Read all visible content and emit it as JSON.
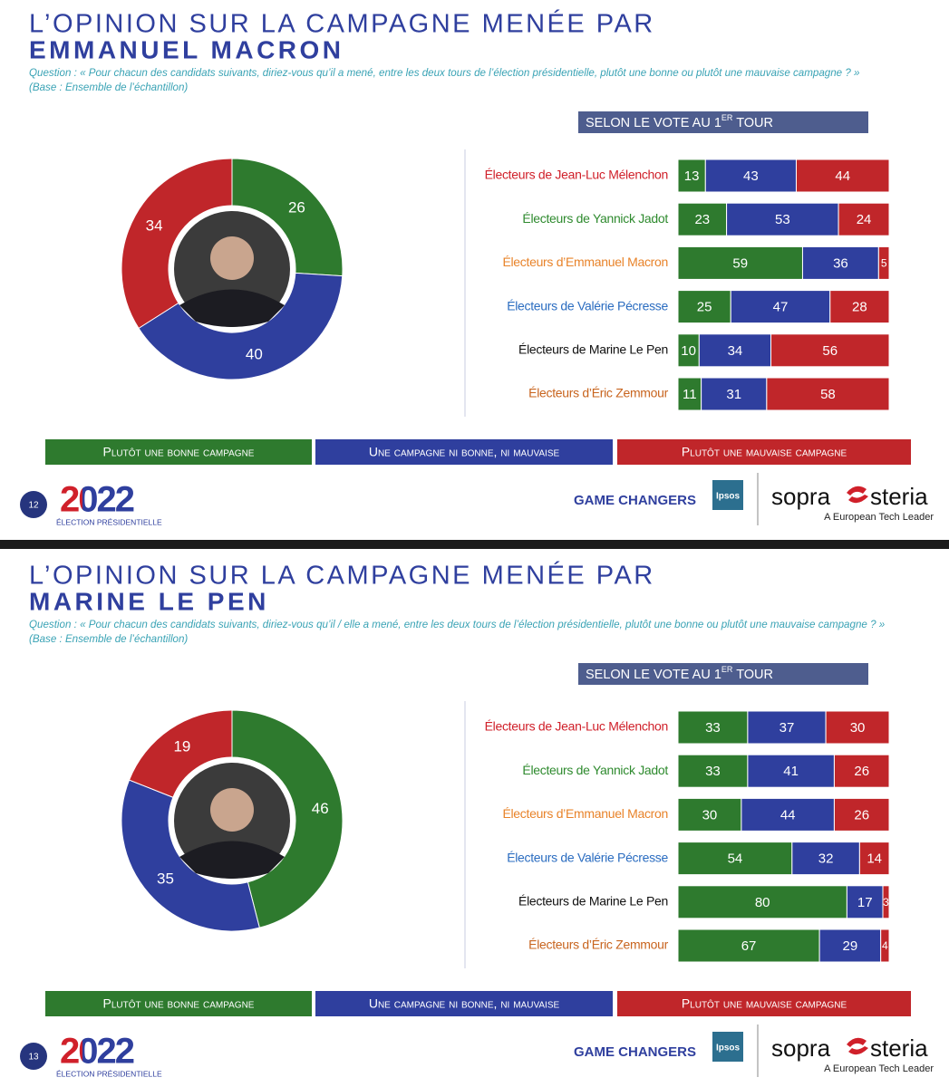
{
  "slides": [
    {
      "title_line1": "L’OPINION SUR LA CAMPAGNE MENÉE PAR",
      "title_line2": "EMMANUEL MACRON",
      "question": "Question : « Pour chacun des candidats suivants, diriez-vous qu’il a mené, entre les deux tours de l’élection présidentielle, plutôt une bonne ou plutôt une mauvaise campagne ? »",
      "base": "(Base : Ensemble de l’échantillon)",
      "page_number": "12",
      "logo_year": "2022",
      "logo_caption": "ÉLECTION PRÉSIDENTIELLE",
      "game_changers": "GAME CHANGERS",
      "ipsos": "Ipsos",
      "sopra": "sopra",
      "steria": "steria",
      "tagline": "A European Tech Leader"
    },
    {
      "title_line1": "L’OPINION SUR LA CAMPAGNE MENÉE PAR",
      "title_line2": "MARINE LE PEN",
      "question": "Question : « Pour chacun des candidats suivants, diriez-vous qu’il / elle a mené, entre les deux tours de l’élection présidentielle, plutôt une bonne ou plutôt une mauvaise campagne ? »",
      "base": "(Base : Ensemble de l’échantillon)",
      "page_number": "13",
      "logo_year": "2022",
      "logo_caption": "ÉLECTION PRÉSIDENTIELLE",
      "game_changers": "GAME CHANGERS",
      "ipsos": "Ipsos",
      "sopra": "sopra",
      "steria": "steria",
      "tagline": "A European Tech Leader"
    }
  ],
  "chart_data": [
    {
      "type": "donut",
      "values": [
        26,
        40,
        34
      ],
      "colors": [
        "#2e7a2e",
        "#2f3f9e",
        "#c0262a"
      ]
    },
    {
      "type": "stacked-bar-h",
      "header_text": "SELON LE VOTE AU 1",
      "header_sup": "ER",
      "header_end": " TOUR",
      "categories": [
        "Électeurs de Jean-Luc Mélenchon",
        "Électeurs de Yannick Jadot",
        "Électeurs d’Emmanuel Macron",
        "Électeurs de Valérie Pécresse",
        "Électeurs de Marine Le Pen",
        "Électeurs d’Éric Zemmour"
      ],
      "category_colors": [
        "#d0202a",
        "#2e8a2e",
        "#e8832a",
        "#2a6cc0",
        "#111111",
        "#c8641e"
      ],
      "xlim": [
        0,
        100
      ],
      "series": [
        {
          "name": "Plutôt une bonne campagne",
          "color": "#2e7a2e",
          "values": [
            13,
            23,
            59,
            25,
            10,
            11
          ]
        },
        {
          "name": "Une campagne ni bonne, ni mauvaise",
          "color": "#2f3f9e",
          "values": [
            43,
            53,
            36,
            47,
            34,
            31
          ]
        },
        {
          "name": "Plutôt une mauvaise campagne",
          "color": "#c0262a",
          "values": [
            44,
            24,
            5,
            28,
            56,
            58
          ]
        }
      ]
    },
    {
      "type": "donut",
      "values": [
        46,
        35,
        19
      ],
      "colors": [
        "#2e7a2e",
        "#2f3f9e",
        "#c0262a"
      ]
    },
    {
      "type": "stacked-bar-h",
      "header_text": "SELON LE VOTE AU 1",
      "header_sup": "ER",
      "header_end": " TOUR",
      "categories": [
        "Électeurs de Jean-Luc Mélenchon",
        "Électeurs de Yannick Jadot",
        "Électeurs d’Emmanuel Macron",
        "Électeurs de Valérie Pécresse",
        "Électeurs de Marine Le Pen",
        "Électeurs d’Éric Zemmour"
      ],
      "category_colors": [
        "#d0202a",
        "#2e8a2e",
        "#e8832a",
        "#2a6cc0",
        "#111111",
        "#c8641e"
      ],
      "xlim": [
        0,
        100
      ],
      "series": [
        {
          "name": "Plutôt une bonne campagne",
          "color": "#2e7a2e",
          "values": [
            33,
            33,
            30,
            54,
            80,
            67
          ]
        },
        {
          "name": "Une campagne ni bonne, ni mauvaise",
          "color": "#2f3f9e",
          "values": [
            37,
            41,
            44,
            32,
            17,
            29
          ]
        },
        {
          "name": "Plutôt une mauvaise campagne",
          "color": "#c0262a",
          "values": [
            30,
            26,
            26,
            14,
            3,
            4
          ]
        }
      ]
    }
  ]
}
